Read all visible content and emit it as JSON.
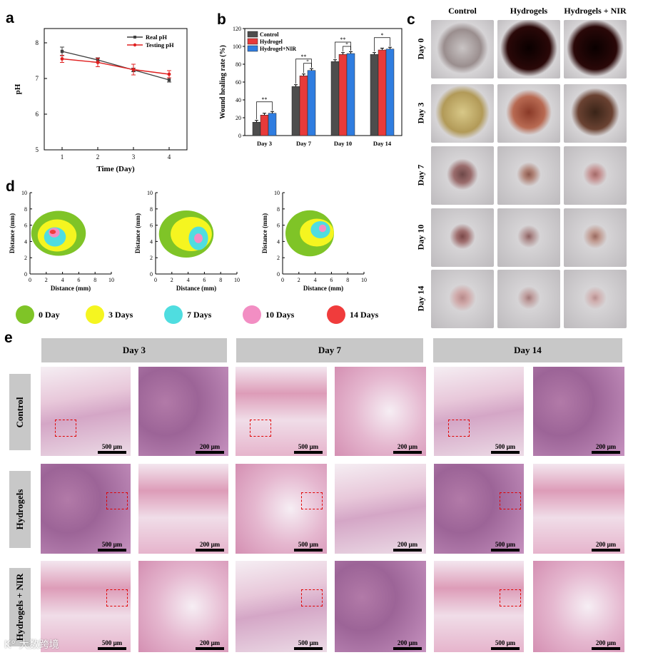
{
  "panels": {
    "a": {
      "label": "a",
      "chart_data": {
        "type": "line",
        "xlabel": "Time (Day)",
        "ylabel": "pH",
        "x": [
          1,
          2,
          3,
          4
        ],
        "xlim": [
          0.5,
          4.5
        ],
        "ylim": [
          5,
          8.4
        ],
        "yticks": [
          5,
          6,
          7,
          8
        ],
        "series": [
          {
            "name": "Real pH",
            "color": "#404040",
            "values": [
              7.76,
              7.52,
              7.24,
              6.96
            ],
            "err": [
              0.12,
              0.06,
              0.05,
              0.06
            ]
          },
          {
            "name": "Testing pH",
            "color": "#e02020",
            "values": [
              7.55,
              7.45,
              7.25,
              7.12
            ],
            "err": [
              0.1,
              0.12,
              0.15,
              0.1
            ]
          }
        ]
      }
    },
    "b": {
      "label": "b",
      "chart_data": {
        "type": "bar",
        "ylabel": "Wound healing rate (%)",
        "categories": [
          "Day 3",
          "Day 7",
          "Day 10",
          "Day 14"
        ],
        "ylim": [
          0,
          120
        ],
        "yticks": [
          0,
          20,
          40,
          60,
          80,
          100,
          120
        ],
        "series": [
          {
            "name": "Control",
            "color": "#4d4d4d",
            "values": [
              15,
              55,
              83,
              91
            ]
          },
          {
            "name": "Hydrogel",
            "color": "#e83a3a",
            "values": [
              23,
              67,
              91,
              96
            ]
          },
          {
            "name": "Hydrogel+NIR",
            "color": "#2f7de0",
            "values": [
              25,
              73,
              92,
              97
            ]
          }
        ],
        "significance": [
          "**",
          "**",
          "**",
          "*"
        ],
        "significance2": [
          "",
          "*",
          "*",
          ""
        ]
      }
    },
    "c": {
      "label": "c",
      "columns": [
        "Control",
        "Hydrogels",
        "Hydrogels + NIR"
      ],
      "rows": [
        "Day 0",
        "Day 3",
        "Day 7",
        "Day 10",
        "Day 14"
      ]
    },
    "d": {
      "label": "d",
      "xlabel": "Distance (mm)",
      "ylabel": "Distance (mm)",
      "ticks": [
        "0",
        "2",
        "4",
        "6",
        "8",
        "10"
      ],
      "legend": [
        {
          "label": "0 Day",
          "color": "#7fc427"
        },
        {
          "label": "3 Days",
          "color": "#f5f520"
        },
        {
          "label": "7 Days",
          "color": "#4fdde0"
        },
        {
          "label": "10 Days",
          "color": "#f28ec3"
        },
        {
          "label": "14 Days",
          "color": "#f03c3c"
        }
      ]
    },
    "e": {
      "label": "e",
      "headers": [
        "Day 3",
        "Day 7",
        "Day 14"
      ],
      "rows": [
        "Control",
        "Hydrogels",
        "Hydrogels + NIR"
      ],
      "scale_low": "500 μm",
      "scale_high": "200 μm"
    }
  },
  "watermark": "K° 大数跨境"
}
